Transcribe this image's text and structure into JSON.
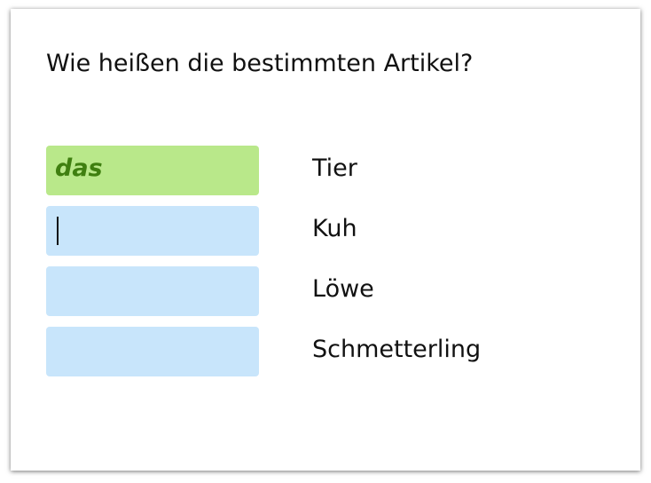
{
  "question": "Wie heißen die bestimmten Artikel?",
  "rows": [
    {
      "answer": "das",
      "noun": "Tier"
    },
    {
      "answer": null,
      "noun": "Kuh"
    },
    {
      "answer": null,
      "noun": "Löwe"
    },
    {
      "answer": null,
      "noun": "Schmetterling"
    }
  ]
}
